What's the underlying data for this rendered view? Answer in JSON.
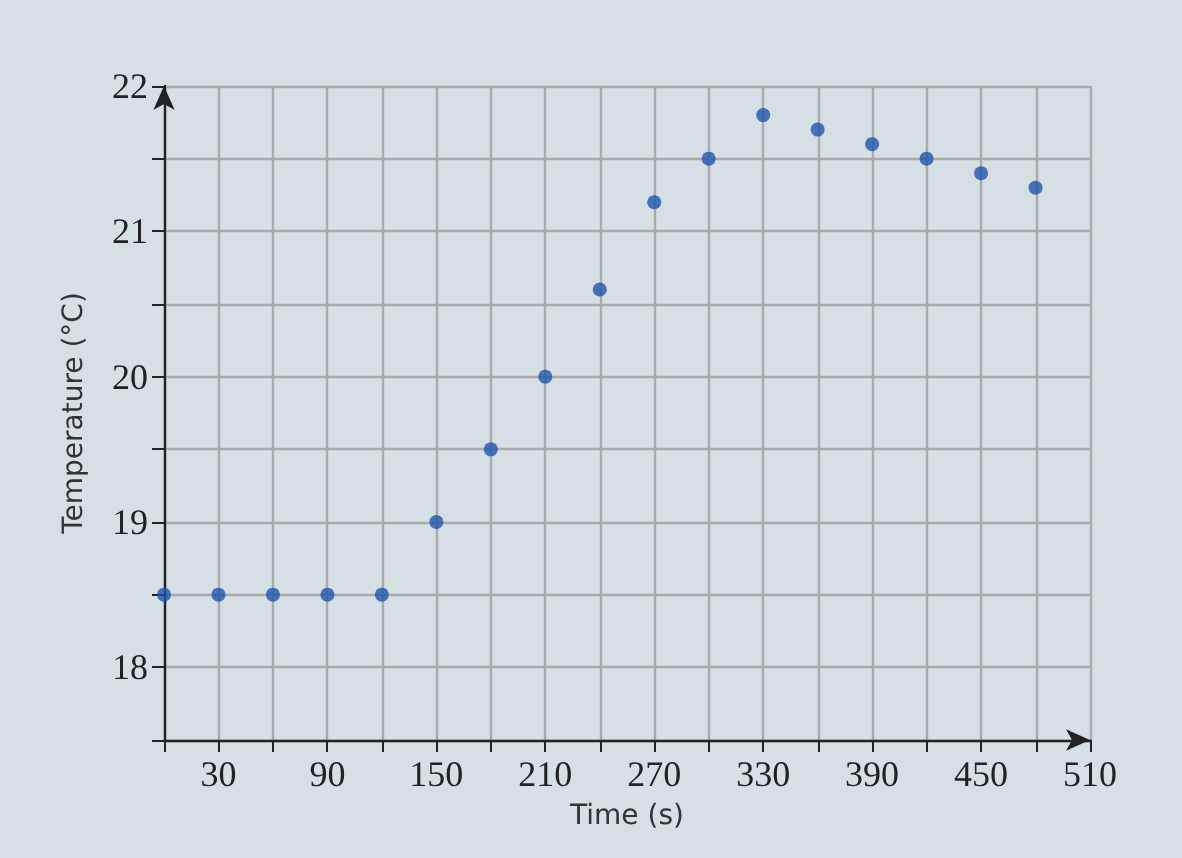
{
  "chart_data": {
    "type": "scatter",
    "xlabel": "Time (s)",
    "ylabel": "Temperature (°C)",
    "x": [
      0,
      30,
      60,
      90,
      120,
      150,
      180,
      210,
      240,
      270,
      300,
      330,
      360,
      390,
      420,
      450,
      480
    ],
    "series": [
      {
        "color": "#1f55ad",
        "values": [
          18.5,
          18.5,
          18.5,
          18.5,
          18.5,
          19.0,
          19.5,
          20.0,
          20.6,
          21.2,
          21.5,
          21.8,
          21.7,
          21.6,
          21.5,
          21.4,
          21.3
        ]
      }
    ],
    "xlim": [
      0,
      510
    ],
    "xticks": [
      {
        "value": 0,
        "label": null
      },
      30,
      {
        "value": 60,
        "label": null
      },
      90,
      {
        "value": 120,
        "label": null
      },
      150,
      {
        "value": 180,
        "label": null
      },
      210,
      {
        "value": 240,
        "label": null
      },
      270,
      {
        "value": 300,
        "label": null
      },
      330,
      {
        "value": 360,
        "label": null
      },
      390,
      {
        "value": 420,
        "label": null
      },
      450,
      {
        "value": 480,
        "label": null
      },
      510
    ],
    "ylim": [
      17.5,
      22
    ],
    "yticks": [
      {
        "value": 17.5,
        "label": null
      },
      18,
      {
        "value": 18.5,
        "label": null
      },
      19,
      {
        "value": 19.5,
        "label": null
      },
      20,
      {
        "value": 20.5,
        "label": null
      },
      21,
      {
        "value": 21.5,
        "label": null
      },
      22
    ],
    "grid": true,
    "marker": "circle"
  }
}
